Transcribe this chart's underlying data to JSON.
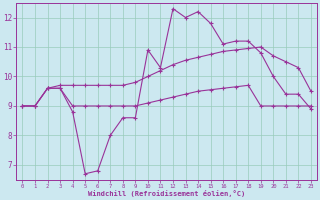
{
  "xlabel": "Windchill (Refroidissement éolien,°C)",
  "bg_color": "#cce8f0",
  "grid_color": "#99ccbb",
  "line_color": "#993399",
  "ylim": [
    6.5,
    12.5
  ],
  "xlim": [
    -0.5,
    23.5
  ],
  "yticks": [
    7,
    8,
    9,
    10,
    11,
    12
  ],
  "xticks": [
    0,
    1,
    2,
    3,
    4,
    5,
    6,
    7,
    8,
    9,
    10,
    11,
    12,
    13,
    14,
    15,
    16,
    17,
    18,
    19,
    20,
    21,
    22,
    23
  ],
  "series_actual": [
    9.0,
    9.0,
    9.6,
    9.6,
    8.8,
    6.7,
    6.8,
    8.0,
    8.6,
    8.6,
    10.9,
    10.3,
    12.3,
    12.0,
    12.2,
    11.8,
    11.1,
    11.2,
    11.2,
    10.8,
    10.0,
    9.4,
    9.4,
    8.9
  ],
  "series_upper": [
    9.0,
    9.0,
    9.6,
    9.7,
    9.7,
    9.7,
    9.7,
    9.7,
    9.7,
    9.8,
    10.0,
    10.2,
    10.4,
    10.55,
    10.65,
    10.75,
    10.85,
    10.9,
    10.95,
    11.0,
    10.7,
    10.5,
    10.3,
    9.5
  ],
  "series_lower": [
    9.0,
    9.0,
    9.6,
    9.6,
    9.0,
    9.0,
    9.0,
    9.0,
    9.0,
    9.0,
    9.1,
    9.2,
    9.3,
    9.4,
    9.5,
    9.55,
    9.6,
    9.65,
    9.7,
    9.0,
    9.0,
    9.0,
    9.0,
    9.0
  ]
}
